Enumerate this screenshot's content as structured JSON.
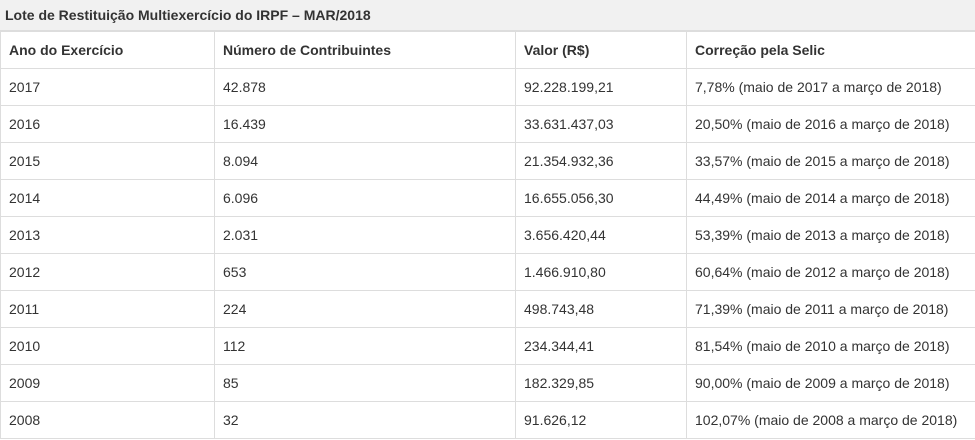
{
  "caption": "Lote de Restituição Multiexercício do IRPF – MAR/2018",
  "headers": [
    "Ano do Exercício",
    "Número de Contribuintes",
    "Valor (R$)",
    "Correção pela Selic"
  ],
  "rows": [
    [
      "2017",
      "42.878",
      "92.228.199,21",
      "7,78% (maio de 2017 a março de 2018)"
    ],
    [
      "2016",
      "16.439",
      "33.631.437,03",
      "20,50% (maio de 2016 a março de 2018)"
    ],
    [
      "2015",
      "8.094",
      "21.354.932,36",
      "33,57% (maio de 2015 a março de 2018)"
    ],
    [
      "2014",
      "6.096",
      "16.655.056,30",
      "44,49% (maio de 2014 a março de 2018)"
    ],
    [
      "2013",
      "2.031",
      "3.656.420,44",
      "53,39% (maio de 2013 a março de 2018)"
    ],
    [
      "2012",
      "653",
      "1.466.910,80",
      "60,64% (maio de 2012 a março de 2018)"
    ],
    [
      "2011",
      "224",
      "498.743,48",
      "71,39% (maio de 2011 a março de 2018)"
    ],
    [
      "2010",
      "112",
      "234.344,41",
      "81,54% (maio de 2010 a março de 2018)"
    ],
    [
      "2009",
      "85",
      "182.329,85",
      "90,00% (maio de 2009 a março de 2018)"
    ],
    [
      "2008",
      "32",
      "91.626,12",
      "102,07% (maio de 2008 a março de 2018)"
    ]
  ]
}
